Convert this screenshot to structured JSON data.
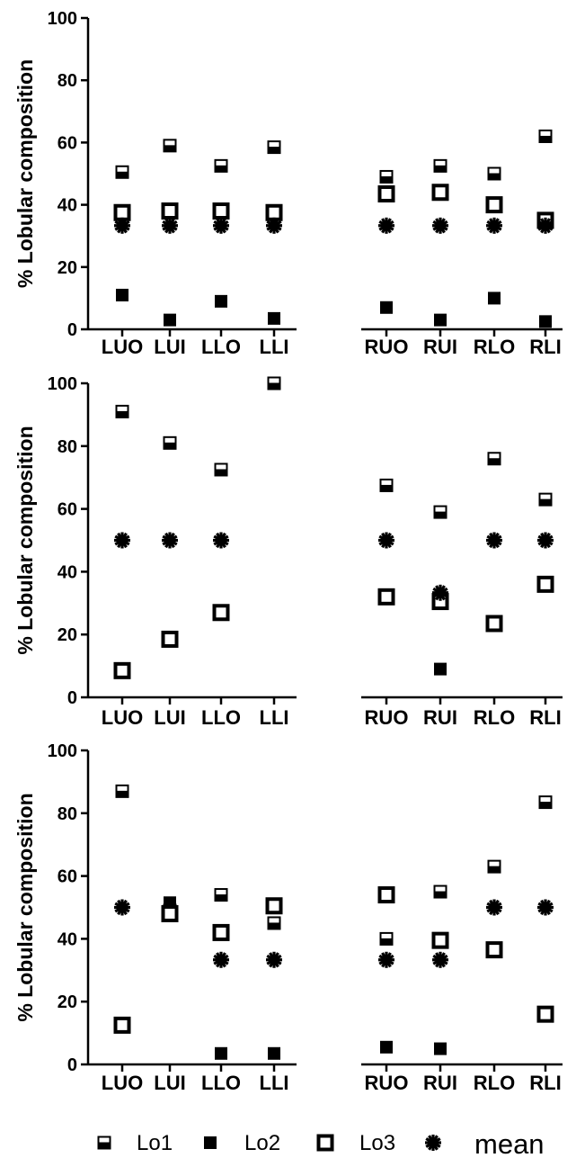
{
  "chart_data": [
    {
      "type": "scatter",
      "title": "",
      "xlabel": "",
      "ylabel": "% Lobular composition",
      "categories": [
        "LUO",
        "LUI",
        "LLO",
        "LLI",
        "RUO",
        "RUI",
        "RLO",
        "RLI"
      ],
      "ylim": [
        0,
        100
      ],
      "yticks": [
        "0",
        "20",
        "40",
        "60",
        "80",
        "100"
      ],
      "series": [
        {
          "name": "Lo1",
          "values": [
            50.5,
            59,
            52.5,
            58.5,
            49,
            52.5,
            50,
            62
          ]
        },
        {
          "name": "Lo2",
          "values": [
            11,
            3,
            9,
            3.5,
            7,
            3,
            10,
            2.5
          ]
        },
        {
          "name": "Lo3",
          "values": [
            37.5,
            38,
            38,
            37.5,
            43.5,
            44,
            40,
            35
          ]
        },
        {
          "name": "mean",
          "values": [
            33.3,
            33.3,
            33.3,
            33.3,
            33.3,
            33.3,
            33.3,
            33.3
          ]
        }
      ]
    },
    {
      "type": "scatter",
      "title": "",
      "xlabel": "",
      "ylabel": "% Lobular composition",
      "categories": [
        "LUO",
        "LUI",
        "LLO",
        "LLI",
        "RUO",
        "RUI",
        "RLO",
        "RLI"
      ],
      "ylim": [
        0,
        100
      ],
      "yticks": [
        "0",
        "20",
        "40",
        "60",
        "80",
        "100"
      ],
      "series": [
        {
          "name": "Lo1",
          "values": [
            91,
            81,
            72.5,
            100,
            67.5,
            59,
            76,
            63
          ]
        },
        {
          "name": "Lo2",
          "values": [
            null,
            null,
            null,
            null,
            null,
            9,
            null,
            null
          ]
        },
        {
          "name": "Lo3",
          "values": [
            8.5,
            18.5,
            27,
            null,
            32,
            30.5,
            23.5,
            36
          ]
        },
        {
          "name": "mean",
          "values": [
            50,
            50,
            50,
            null,
            50,
            33.3,
            50,
            50
          ]
        }
      ]
    },
    {
      "type": "scatter",
      "title": "",
      "xlabel": "",
      "ylabel": "% Lobular composition",
      "categories": [
        "LUO",
        "LUI",
        "LLO",
        "LLI",
        "RUO",
        "RUI",
        "RLO",
        "RLI"
      ],
      "ylim": [
        0,
        100
      ],
      "yticks": [
        "0",
        "20",
        "40",
        "60",
        "80",
        "100"
      ],
      "series": [
        {
          "name": "Lo1",
          "values": [
            87,
            49,
            54,
            45,
            40,
            55,
            63,
            83.5
          ]
        },
        {
          "name": "Lo2",
          "values": [
            null,
            51.5,
            3.5,
            3.5,
            5.5,
            5,
            null,
            null
          ]
        },
        {
          "name": "Lo3",
          "values": [
            12.5,
            48,
            42,
            50.5,
            54,
            39.5,
            36.5,
            16
          ]
        },
        {
          "name": "mean",
          "values": [
            50,
            null,
            33.3,
            33.3,
            33.3,
            33.3,
            50,
            50
          ]
        }
      ]
    }
  ],
  "legend": {
    "items": [
      {
        "marker": "half-filled-square",
        "label": "Lo1"
      },
      {
        "marker": "filled-square",
        "label": "Lo2"
      },
      {
        "marker": "open-square",
        "label": "Lo3"
      },
      {
        "marker": "star-burst",
        "label": "mean"
      }
    ]
  },
  "colors": {
    "ink": "#000000",
    "background": "#ffffff"
  }
}
